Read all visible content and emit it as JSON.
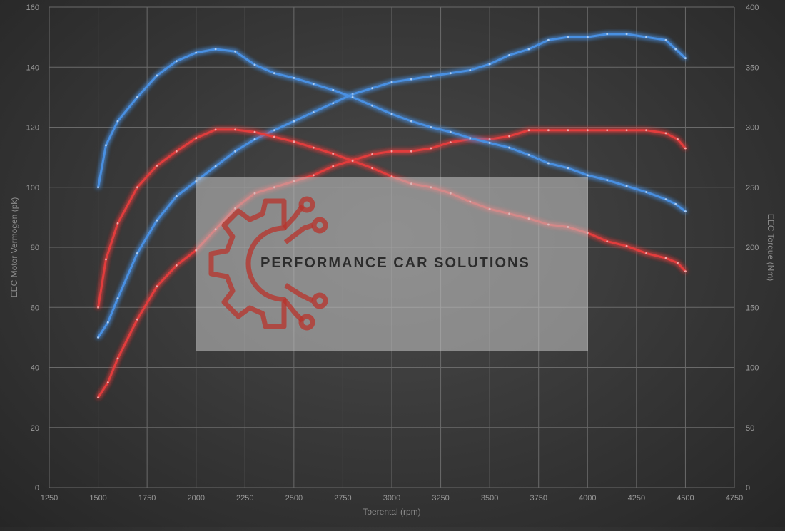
{
  "chart_data": {
    "type": "line",
    "title": "",
    "xlabel": "Toerental (rpm)",
    "ylabel_left": "EEC Motor Vermogen (pk)",
    "ylabel_right": "EEC Torque (Nm)",
    "xlim": [
      1250,
      4750
    ],
    "ylim_left": [
      0,
      160
    ],
    "ylim_right": [
      0,
      400
    ],
    "x_ticks": [
      1250,
      1500,
      1750,
      2000,
      2250,
      2500,
      2750,
      3000,
      3250,
      3500,
      3750,
      4000,
      4250,
      4500,
      4750
    ],
    "y_ticks_left": [
      0,
      20,
      40,
      60,
      80,
      100,
      120,
      140,
      160
    ],
    "y_ticks_right": [
      0,
      50,
      100,
      150,
      200,
      250,
      300,
      350,
      400
    ],
    "grid": true,
    "legend": "none",
    "series": [
      {
        "axis": "left",
        "color": "#4a90e2",
        "points": [
          [
            1500,
            50
          ],
          [
            1550,
            55
          ],
          [
            1600,
            63
          ],
          [
            1700,
            78
          ],
          [
            1800,
            89
          ],
          [
            1900,
            97
          ],
          [
            2000,
            102
          ],
          [
            2100,
            107
          ],
          [
            2200,
            112
          ],
          [
            2300,
            116
          ],
          [
            2400,
            119
          ],
          [
            2500,
            122
          ],
          [
            2600,
            125
          ],
          [
            2700,
            128
          ],
          [
            2800,
            131
          ],
          [
            2900,
            133
          ],
          [
            3000,
            135
          ],
          [
            3100,
            136
          ],
          [
            3200,
            137
          ],
          [
            3300,
            138
          ],
          [
            3400,
            139
          ],
          [
            3500,
            141
          ],
          [
            3600,
            144
          ],
          [
            3700,
            146
          ],
          [
            3800,
            149
          ],
          [
            3900,
            150
          ],
          [
            4000,
            150
          ],
          [
            4100,
            151
          ],
          [
            4200,
            151
          ],
          [
            4300,
            150
          ],
          [
            4400,
            149
          ],
          [
            4450,
            146
          ],
          [
            4500,
            143
          ]
        ]
      },
      {
        "axis": "left",
        "color": "#e23c3c",
        "points": [
          [
            1500,
            30
          ],
          [
            1550,
            35
          ],
          [
            1600,
            43
          ],
          [
            1700,
            56
          ],
          [
            1800,
            67
          ],
          [
            1900,
            74
          ],
          [
            2000,
            79
          ],
          [
            2100,
            86
          ],
          [
            2200,
            93
          ],
          [
            2300,
            98
          ],
          [
            2400,
            100
          ],
          [
            2500,
            102
          ],
          [
            2600,
            104
          ],
          [
            2700,
            107
          ],
          [
            2800,
            109
          ],
          [
            2900,
            111
          ],
          [
            3000,
            112
          ],
          [
            3100,
            112
          ],
          [
            3200,
            113
          ],
          [
            3300,
            115
          ],
          [
            3400,
            116
          ],
          [
            3500,
            116
          ],
          [
            3600,
            117
          ],
          [
            3700,
            119
          ],
          [
            3800,
            119
          ],
          [
            3900,
            119
          ],
          [
            4000,
            119
          ],
          [
            4100,
            119
          ],
          [
            4200,
            119
          ],
          [
            4300,
            119
          ],
          [
            4400,
            118
          ],
          [
            4460,
            116
          ],
          [
            4500,
            113
          ]
        ]
      },
      {
        "axis": "right",
        "color": "#4a90e2",
        "points": [
          [
            1500,
            250
          ],
          [
            1540,
            285
          ],
          [
            1600,
            305
          ],
          [
            1700,
            325
          ],
          [
            1800,
            343
          ],
          [
            1900,
            355
          ],
          [
            2000,
            362
          ],
          [
            2100,
            365
          ],
          [
            2200,
            363
          ],
          [
            2300,
            352
          ],
          [
            2400,
            345
          ],
          [
            2500,
            341
          ],
          [
            2600,
            336
          ],
          [
            2700,
            331
          ],
          [
            2800,
            325
          ],
          [
            2900,
            318
          ],
          [
            3000,
            311
          ],
          [
            3100,
            305
          ],
          [
            3200,
            300
          ],
          [
            3300,
            296
          ],
          [
            3400,
            291
          ],
          [
            3500,
            287
          ],
          [
            3600,
            283
          ],
          [
            3700,
            277
          ],
          [
            3800,
            270
          ],
          [
            3900,
            266
          ],
          [
            4000,
            260
          ],
          [
            4100,
            256
          ],
          [
            4200,
            251
          ],
          [
            4300,
            246
          ],
          [
            4400,
            240
          ],
          [
            4450,
            236
          ],
          [
            4500,
            230
          ]
        ]
      },
      {
        "axis": "right",
        "color": "#e23c3c",
        "points": [
          [
            1500,
            150
          ],
          [
            1540,
            190
          ],
          [
            1600,
            220
          ],
          [
            1700,
            250
          ],
          [
            1800,
            268
          ],
          [
            1900,
            280
          ],
          [
            2000,
            291
          ],
          [
            2100,
            298
          ],
          [
            2200,
            298
          ],
          [
            2300,
            296
          ],
          [
            2400,
            292
          ],
          [
            2500,
            288
          ],
          [
            2600,
            283
          ],
          [
            2700,
            278
          ],
          [
            2800,
            272
          ],
          [
            2900,
            266
          ],
          [
            3000,
            259
          ],
          [
            3100,
            253
          ],
          [
            3200,
            250
          ],
          [
            3300,
            245
          ],
          [
            3400,
            238
          ],
          [
            3500,
            232
          ],
          [
            3600,
            228
          ],
          [
            3700,
            224
          ],
          [
            3800,
            219
          ],
          [
            3900,
            217
          ],
          [
            4000,
            212
          ],
          [
            4100,
            205
          ],
          [
            4200,
            201
          ],
          [
            4300,
            195
          ],
          [
            4400,
            191
          ],
          [
            4460,
            187
          ],
          [
            4500,
            180
          ]
        ]
      }
    ]
  },
  "watermark": {
    "text": "PERFORMANCE CAR SOLUTIONS",
    "logo": "gear-circuit-logo",
    "logo_color": "#b8332b"
  }
}
